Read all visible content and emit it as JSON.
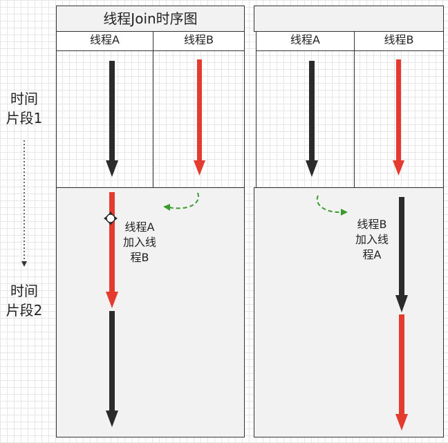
{
  "left_panel": {
    "title": "线程Join时序图",
    "col_a": "线程A",
    "col_b": "线程B",
    "note": [
      "线程A",
      "加入线",
      "程B"
    ]
  },
  "right_panel": {
    "title": "",
    "col_a": "线程A",
    "col_b": "线程B",
    "note": [
      "线程B",
      "加入线",
      "程A"
    ]
  },
  "time_labels": {
    "segment1": [
      "时间",
      "片段1"
    ],
    "segment2": [
      "时间",
      "片段2"
    ]
  },
  "colors": {
    "thread_black": "#2b2b2b",
    "thread_red": "#e53a2e",
    "join_arrow_green": "#3a9a2e",
    "lower_bg": "#f2f2f2",
    "border": "#333333"
  }
}
